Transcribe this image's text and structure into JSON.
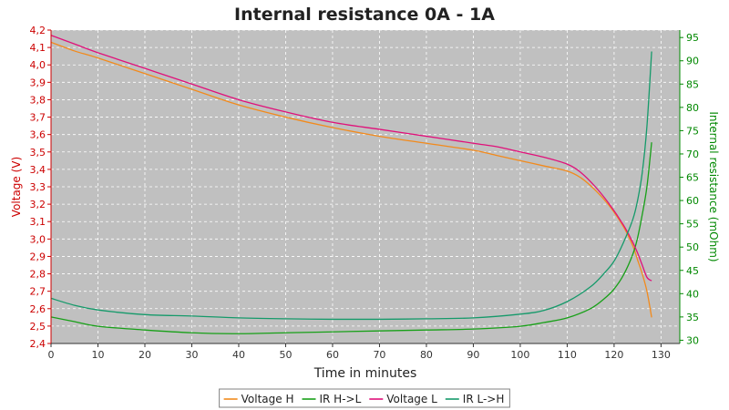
{
  "colors": {
    "plot_bg": "#c0c0c0",
    "grid": "#ffffff",
    "left_axis": "#cc0000",
    "right_axis": "#008800",
    "axis_dark": "#333333"
  },
  "chart_data": {
    "type": "line",
    "title": "Internal resistance  0A - 1A",
    "xlabel": "Time in minutes",
    "ylabel": "Voltage (V)",
    "y2label": "Internal resistance (mOhm)",
    "xlim": [
      0,
      134
    ],
    "ylim": [
      2.4,
      4.2
    ],
    "y2lim": [
      29.3,
      96.6
    ],
    "xticks": [
      "0",
      "10",
      "20",
      "30",
      "40",
      "50",
      "60",
      "70",
      "80",
      "90",
      "100",
      "110",
      "120",
      "130"
    ],
    "yticks": [
      "2,4",
      "2,5",
      "2,6",
      "2,7",
      "2,8",
      "2,9",
      "3,0",
      "3,1",
      "3,2",
      "3,3",
      "3,4",
      "3,5",
      "3,6",
      "3,7",
      "3,8",
      "3,9",
      "4,0",
      "4,1",
      "4,2"
    ],
    "y2ticks": [
      "30",
      "35",
      "40",
      "45",
      "50",
      "55",
      "60",
      "65",
      "70",
      "75",
      "80",
      "85",
      "90",
      "95"
    ],
    "grid": true,
    "legend_position": "bottom",
    "series": [
      {
        "name": "Voltage H",
        "axis": "left",
        "color": "#f28a1c",
        "x": [
          0,
          5,
          10,
          20,
          30,
          40,
          50,
          60,
          70,
          80,
          90,
          95,
          100,
          105,
          110,
          113,
          116,
          119,
          122,
          124,
          125,
          126,
          127,
          128
        ],
        "y": [
          4.13,
          4.08,
          4.04,
          3.95,
          3.86,
          3.77,
          3.7,
          3.64,
          3.59,
          3.55,
          3.51,
          3.48,
          3.45,
          3.42,
          3.39,
          3.35,
          3.28,
          3.19,
          3.07,
          2.96,
          2.88,
          2.8,
          2.7,
          2.55
        ]
      },
      {
        "name": "IR H->L",
        "axis": "right",
        "color": "#18a018",
        "x": [
          0,
          5,
          10,
          20,
          30,
          40,
          50,
          60,
          70,
          80,
          90,
          100,
          105,
          110,
          115,
          118,
          120,
          122,
          124,
          125,
          126,
          127,
          128
        ],
        "y": [
          35.0,
          34.0,
          33.0,
          32.2,
          31.6,
          31.4,
          31.6,
          31.8,
          32.0,
          32.2,
          32.4,
          33.0,
          33.8,
          34.8,
          36.8,
          39.0,
          41.0,
          44.0,
          48.5,
          52.0,
          57.0,
          63.0,
          72.5
        ]
      },
      {
        "name": "Voltage L",
        "axis": "left",
        "color": "#e0107a",
        "x": [
          0,
          5,
          10,
          20,
          30,
          40,
          50,
          60,
          70,
          80,
          90,
          95,
          100,
          105,
          110,
          113,
          116,
          119,
          122,
          124,
          125,
          126,
          127,
          128
        ],
        "y": [
          4.17,
          4.12,
          4.07,
          3.98,
          3.89,
          3.8,
          3.73,
          3.67,
          3.63,
          3.59,
          3.55,
          3.53,
          3.5,
          3.47,
          3.43,
          3.38,
          3.3,
          3.2,
          3.08,
          2.98,
          2.92,
          2.85,
          2.78,
          2.76
        ]
      },
      {
        "name": "IR L->H",
        "axis": "right",
        "color": "#159a6a",
        "x": [
          0,
          5,
          10,
          20,
          30,
          40,
          50,
          60,
          70,
          80,
          90,
          100,
          105,
          110,
          115,
          118,
          120,
          122,
          124,
          125,
          126,
          127,
          128
        ],
        "y": [
          39.0,
          37.5,
          36.5,
          35.5,
          35.2,
          34.8,
          34.6,
          34.5,
          34.5,
          34.6,
          34.8,
          35.6,
          36.4,
          38.3,
          41.5,
          44.5,
          47.0,
          51.0,
          56.0,
          60.0,
          66.0,
          76.0,
          92.0
        ]
      }
    ]
  }
}
